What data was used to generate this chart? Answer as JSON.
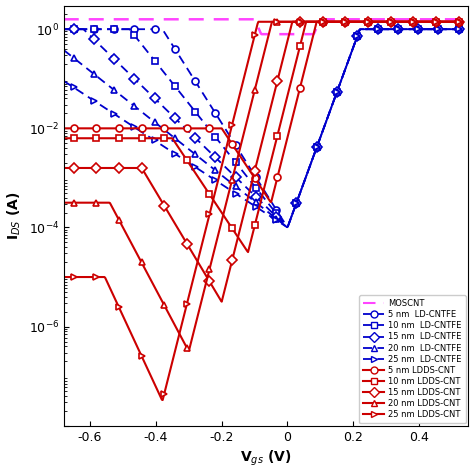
{
  "title": "",
  "xlabel": "V$_{gs}$ (V)",
  "ylabel": "I$_{DS}$ (A)",
  "xlim": [
    -0.68,
    0.55
  ],
  "ylim": [
    1e-08,
    3
  ],
  "xticks": [
    -0.6,
    -0.4,
    -0.2,
    0.0,
    0.2,
    0.4
  ],
  "yticks": [
    1e-08,
    1e-06,
    0.0001,
    0.01,
    1.0
  ],
  "ytick_labels": [
    "",
    "10$^{-6}$",
    "10$^{-4}$",
    "10$^{-2}$",
    "10$^{0}$"
  ],
  "moscnt_color": "#ff44ff",
  "ld_color": "#0000cc",
  "ldds_color": "#cc0000",
  "ld_nms": [
    5,
    10,
    15,
    20,
    25
  ],
  "ldds_nms": [
    5,
    10,
    15,
    20,
    25
  ],
  "ld_markers": [
    "o",
    "s",
    "D",
    "^",
    ">"
  ],
  "ldds_markers": [
    "o",
    "s",
    "D",
    "^",
    ">"
  ]
}
